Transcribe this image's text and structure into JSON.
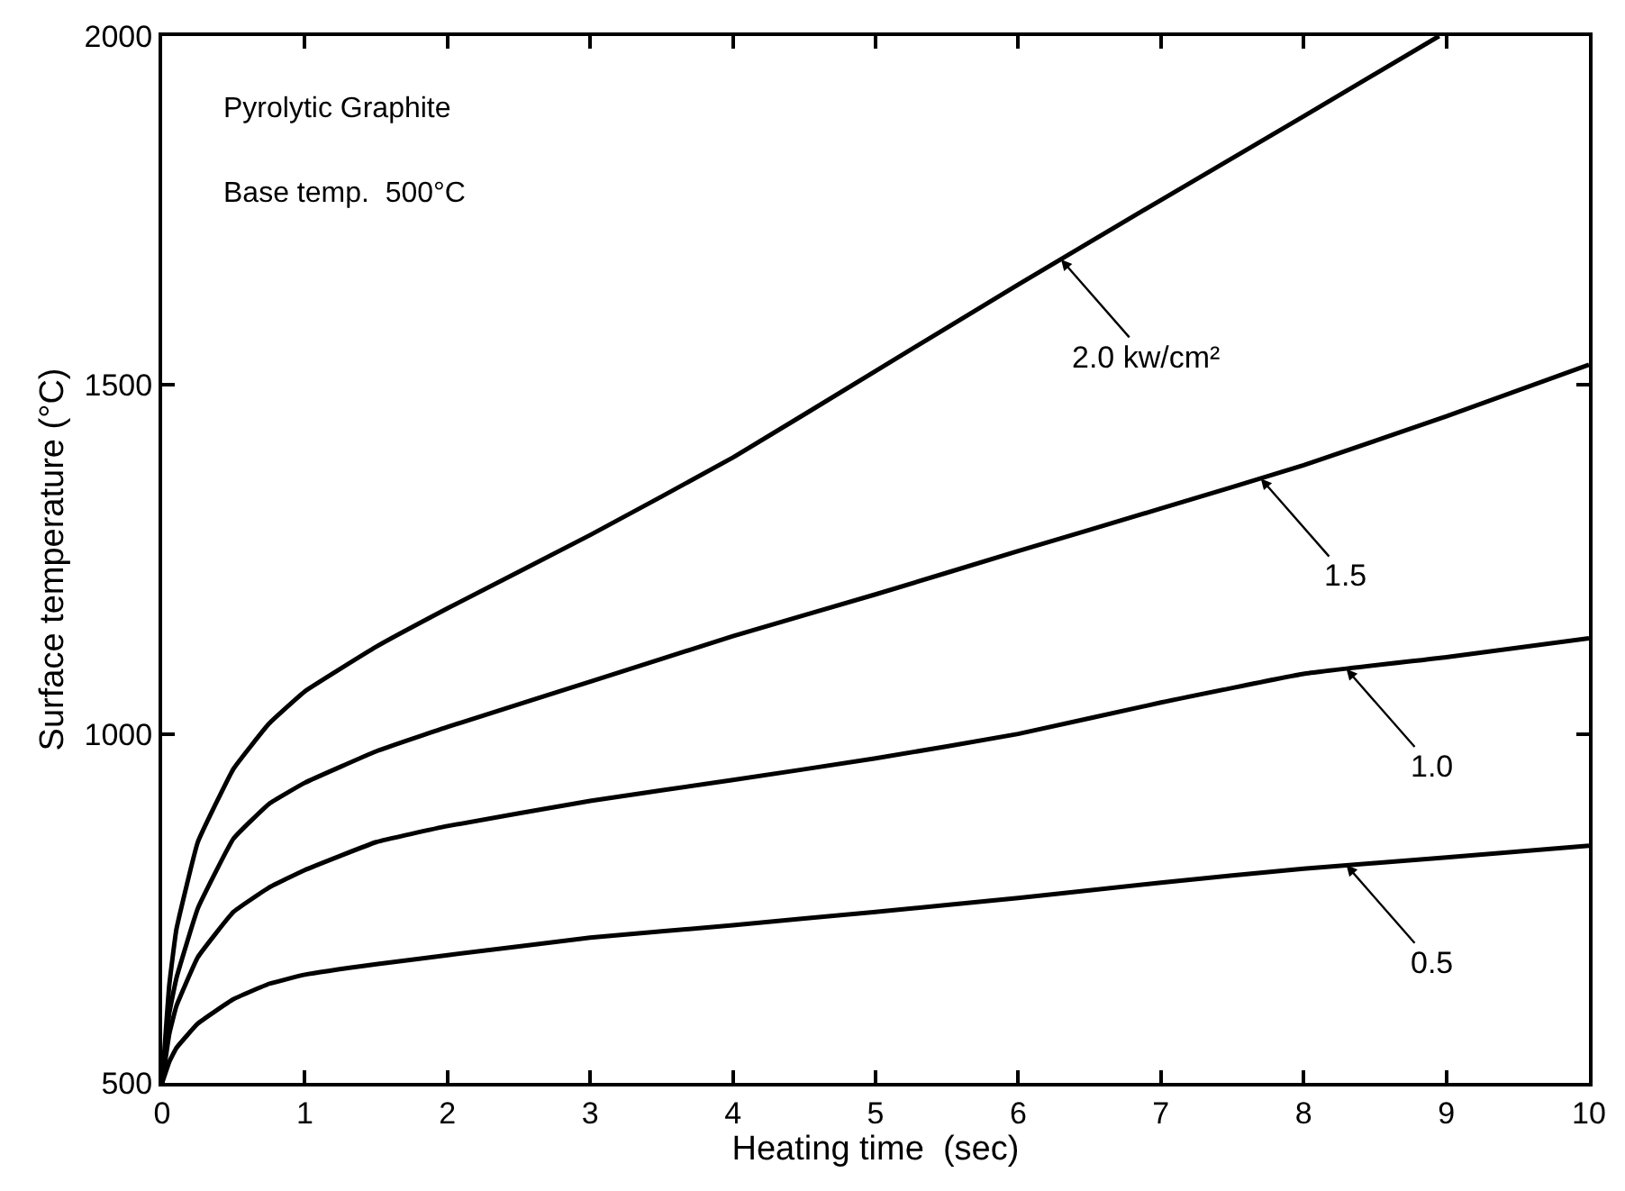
{
  "chart_data": {
    "type": "line",
    "xlabel": "Heating time  (sec)",
    "ylabel": "Surface temperature (°C)",
    "xlim": [
      0,
      10
    ],
    "ylim": [
      500,
      2000
    ],
    "xticks": [
      0,
      1,
      2,
      3,
      4,
      5,
      6,
      7,
      8,
      9,
      10
    ],
    "yticks": [
      500,
      1000,
      1500,
      2000
    ],
    "marker": "none",
    "line_style": "solid",
    "series": [
      {
        "color": "#000000",
        "x": [
          0,
          0.05,
          0.1,
          0.25,
          0.5,
          0.75,
          1,
          1.5,
          2,
          3,
          4,
          5,
          6,
          7,
          8,
          8.95
        ],
        "values": [
          500,
          640,
          720,
          845,
          950,
          1015,
          1061,
          1125,
          1180,
          1285,
          1396,
          1520,
          1644,
          1765,
          1885,
          2000
        ]
      },
      {
        "color": "#000000",
        "x": [
          0,
          0.05,
          0.1,
          0.25,
          0.5,
          0.75,
          1,
          1.5,
          2,
          3,
          4,
          5,
          6,
          7,
          8,
          9,
          10
        ],
        "values": [
          500,
          600,
          650,
          750,
          850,
          900,
          930,
          975,
          1010,
          1075,
          1140,
          1200,
          1262,
          1323,
          1385,
          1455,
          1529
        ]
      },
      {
        "color": "#000000",
        "x": [
          0,
          0.05,
          0.1,
          0.25,
          0.5,
          0.75,
          1,
          1.5,
          2,
          3,
          4,
          5,
          6,
          7,
          8,
          9,
          10
        ],
        "values": [
          500,
          570,
          610,
          680,
          745,
          780,
          805,
          845,
          868,
          904,
          934,
          965,
          1000,
          1045,
          1086,
          1110,
          1137
        ]
      },
      {
        "color": "#000000",
        "x": [
          0,
          0.05,
          0.1,
          0.25,
          0.5,
          0.75,
          1,
          1.5,
          2,
          3,
          4,
          5,
          6,
          7,
          8,
          9,
          10
        ],
        "values": [
          500,
          530,
          550,
          585,
          620,
          642,
          655,
          670,
          683,
          708,
          726,
          745,
          765,
          787,
          807,
          823,
          840
        ]
      }
    ],
    "annotations": [
      "Pyrolytic Graphite",
      "Base temp.  500°C",
      {
        "text": "2.0 kw/cm²",
        "x": 6.3,
        "y": 1680
      },
      {
        "text": "1.5",
        "x": 7.7,
        "y": 1366
      },
      {
        "text": "1.0",
        "x": 8.3,
        "y": 1093
      },
      {
        "text": "0.5",
        "x": 8.3,
        "y": 812
      }
    ]
  }
}
